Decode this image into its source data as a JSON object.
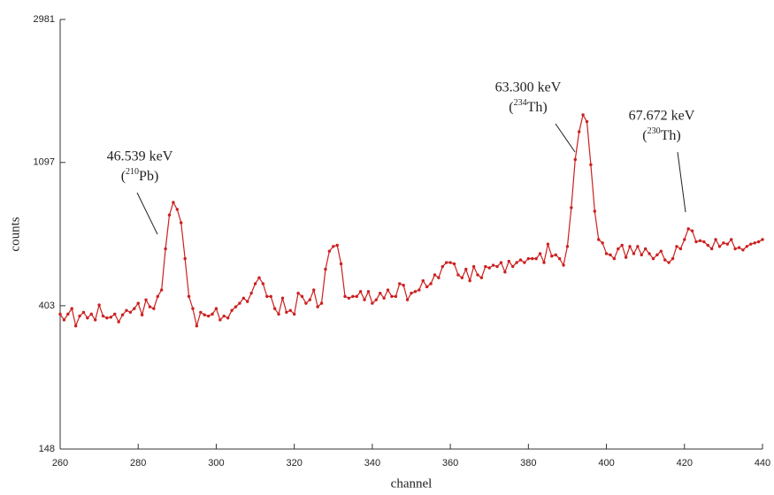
{
  "chart_data": {
    "type": "line",
    "xlabel": "channel",
    "ylabel": "counts",
    "x": [
      260,
      261,
      262,
      263,
      264,
      265,
      266,
      267,
      268,
      269,
      270,
      271,
      272,
      273,
      274,
      275,
      276,
      277,
      278,
      279,
      280,
      281,
      282,
      283,
      284,
      285,
      286,
      287,
      288,
      289,
      290,
      291,
      292,
      293,
      294,
      295,
      296,
      297,
      298,
      299,
      300,
      301,
      302,
      303,
      304,
      305,
      306,
      307,
      308,
      309,
      310,
      311,
      312,
      313,
      314,
      315,
      316,
      317,
      318,
      319,
      320,
      321,
      322,
      323,
      324,
      325,
      326,
      327,
      328,
      329,
      330,
      331,
      332,
      333,
      334,
      335,
      336,
      337,
      338,
      339,
      340,
      341,
      342,
      343,
      344,
      345,
      346,
      347,
      348,
      349,
      350,
      351,
      352,
      353,
      354,
      355,
      356,
      357,
      358,
      359,
      360,
      361,
      362,
      363,
      364,
      365,
      366,
      367,
      368,
      369,
      370,
      371,
      372,
      373,
      374,
      375,
      376,
      377,
      378,
      379,
      380,
      381,
      382,
      383,
      384,
      385,
      386,
      387,
      388,
      389,
      390,
      391,
      392,
      393,
      394,
      395,
      396,
      397,
      398,
      399,
      400,
      401,
      402,
      403,
      404,
      405,
      406,
      407,
      408,
      409,
      410,
      411,
      412,
      413,
      414,
      415,
      416,
      417,
      418,
      419,
      420,
      421,
      422,
      423,
      424,
      425,
      426,
      427,
      428,
      429,
      430,
      431,
      432,
      433,
      434,
      435,
      436,
      437,
      438,
      439,
      440
    ],
    "values": [
      380,
      365,
      380,
      395,
      350,
      375,
      385,
      370,
      380,
      365,
      405,
      375,
      370,
      372,
      380,
      360,
      378,
      390,
      385,
      395,
      410,
      378,
      420,
      400,
      395,
      430,
      450,
      600,
      760,
      830,
      790,
      720,
      560,
      430,
      395,
      350,
      385,
      378,
      375,
      380,
      395,
      365,
      375,
      370,
      390,
      400,
      410,
      425,
      415,
      440,
      470,
      490,
      470,
      430,
      430,
      395,
      380,
      425,
      385,
      390,
      380,
      440,
      430,
      410,
      420,
      450,
      400,
      410,
      520,
      590,
      610,
      615,
      540,
      430,
      425,
      430,
      430,
      445,
      420,
      445,
      410,
      420,
      440,
      425,
      450,
      430,
      430,
      470,
      465,
      420,
      440,
      445,
      450,
      480,
      460,
      470,
      500,
      490,
      530,
      545,
      545,
      540,
      500,
      490,
      520,
      480,
      530,
      500,
      490,
      530,
      525,
      535,
      530,
      545,
      510,
      550,
      530,
      545,
      555,
      545,
      560,
      560,
      560,
      580,
      545,
      620,
      570,
      575,
      560,
      535,
      610,
      800,
      1120,
      1360,
      1530,
      1460,
      1080,
      780,
      640,
      625,
      580,
      575,
      560,
      600,
      615,
      565,
      610,
      580,
      610,
      575,
      600,
      580,
      560,
      575,
      590,
      555,
      545,
      560,
      610,
      600,
      640,
      690,
      680,
      630,
      635,
      630,
      615,
      600,
      640,
      610,
      625,
      620,
      640,
      600,
      605,
      595,
      610,
      620,
      625,
      630,
      640
    ],
    "color": "#cc1f1f",
    "xlim": [
      260,
      440
    ],
    "xticks": [
      260,
      280,
      300,
      320,
      340,
      360,
      380,
      400,
      420,
      440
    ],
    "ylim": [
      148,
      2981
    ],
    "yticks": [
      148,
      403,
      1097,
      2981
    ],
    "yscale": "log",
    "annotations": [
      {
        "text": "46.539 keV",
        "pre": "(",
        "sup": "210",
        "post": "Pb)"
      },
      {
        "text": "63.300 keV",
        "pre": "(",
        "sup": "234",
        "post": "Th)"
      },
      {
        "text": "67.672 keV",
        "pre": "(",
        "sup": "230",
        "post": "Th)"
      }
    ]
  }
}
